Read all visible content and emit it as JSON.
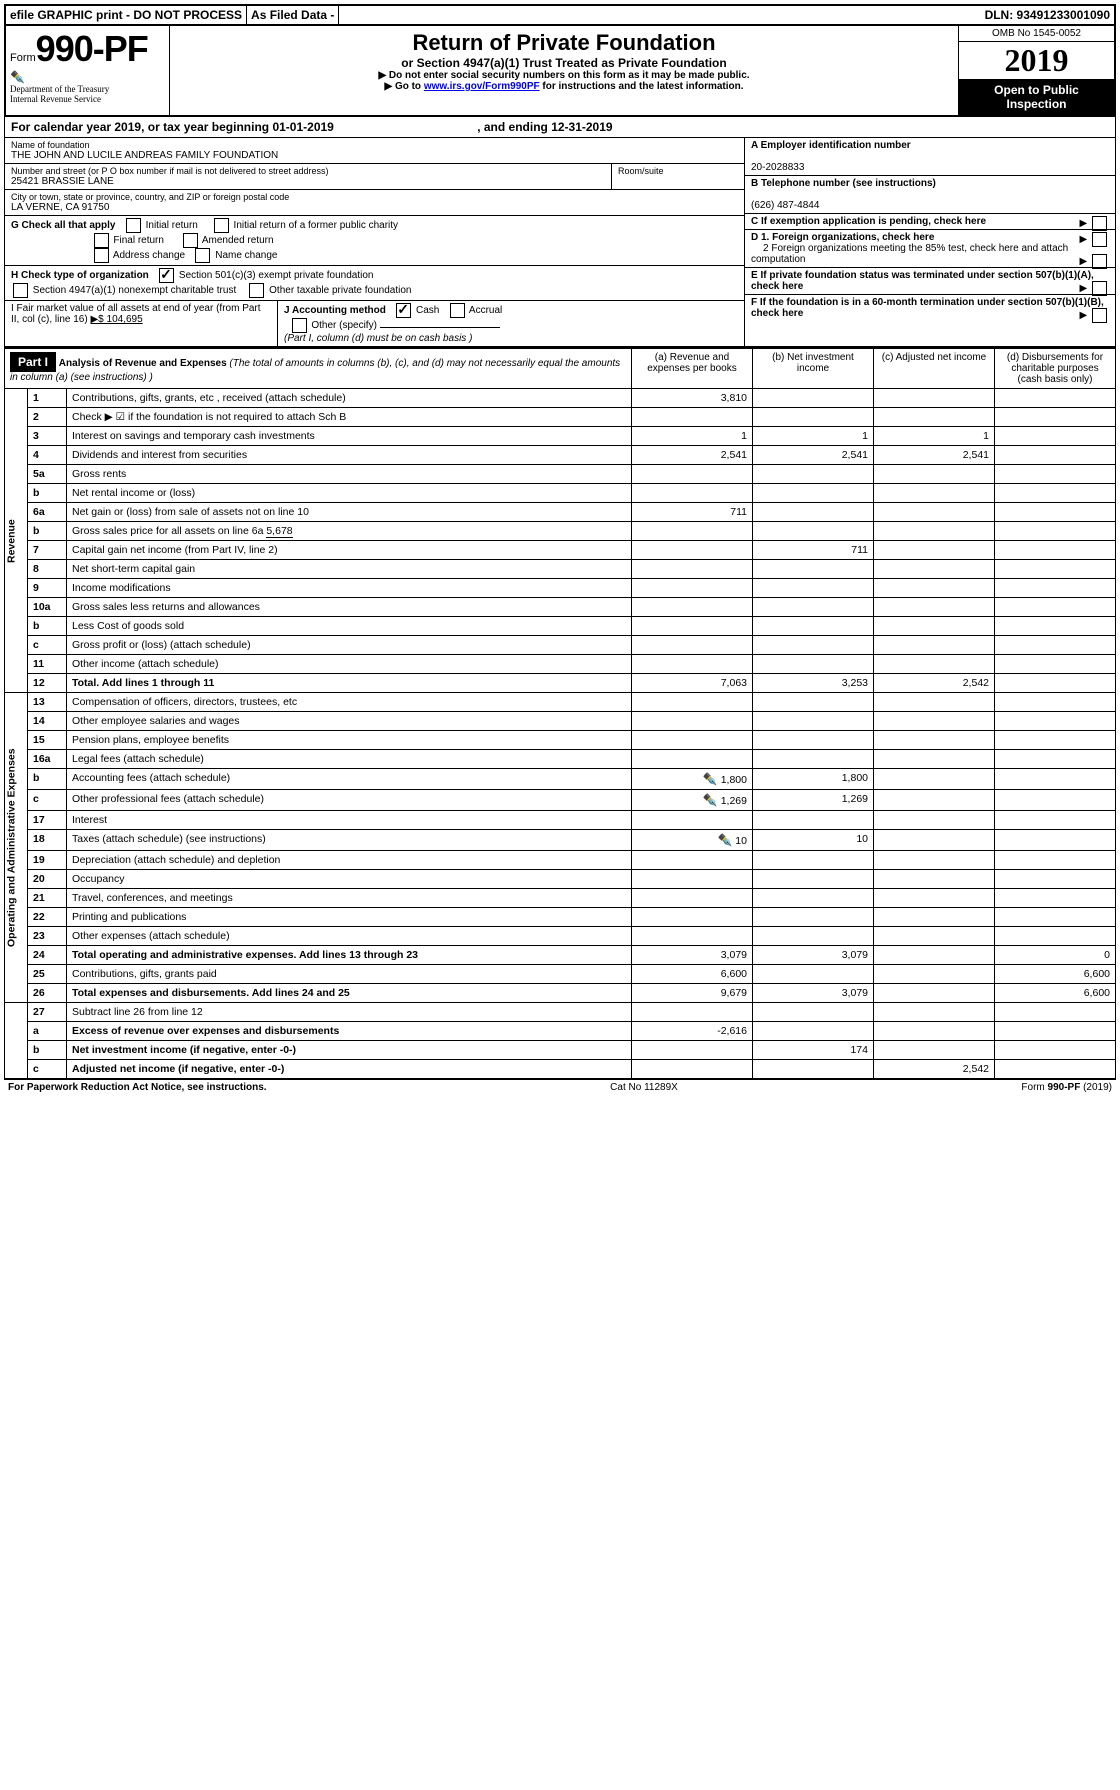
{
  "topbar": {
    "efile": "efile GRAPHIC print - DO NOT PROCESS",
    "asfiled": "As Filed Data -",
    "dln": "DLN: 93491233001090"
  },
  "header": {
    "form_prefix": "Form",
    "form_number": "990-PF",
    "dept1": "Department of the Treasury",
    "dept2": "Internal Revenue Service",
    "title": "Return of Private Foundation",
    "subtitle": "or Section 4947(a)(1) Trust Treated as Private Foundation",
    "note1": "▶ Do not enter social security numbers on this form as it may be made public.",
    "note2_pre": "▶ Go to ",
    "note2_link": "www.irs.gov/Form990PF",
    "note2_post": " for instructions and the latest information.",
    "omb": "OMB No 1545-0052",
    "year": "2019",
    "open_public": "Open to Public Inspection"
  },
  "calendar": {
    "text_pre": "For calendar year 2019, or tax year beginning ",
    "begin": "01-01-2019",
    "mid": ", and ending ",
    "end": "12-31-2019"
  },
  "entity": {
    "name_label": "Name of foundation",
    "name": "THE JOHN AND LUCILE ANDREAS FAMILY FOUNDATION",
    "addr_label": "Number and street (or P O  box number if mail is not delivered to street address)",
    "addr": "25421 BRASSIE LANE",
    "room_label": "Room/suite",
    "city_label": "City or town, state or province, country, and ZIP or foreign postal code",
    "city": "LA VERNE, CA  91750",
    "ein_label": "A Employer identification number",
    "ein": "20-2028833",
    "tel_label": "B Telephone number (see instructions)",
    "tel": "(626) 487-4844",
    "c_label": "C If exemption application is pending, check here",
    "d1": "D 1. Foreign organizations, check here",
    "d2": "2 Foreign organizations meeting the 85% test, check here and attach computation",
    "e": "E  If private foundation status was terminated under section 507(b)(1)(A), check here",
    "f": "F  If the foundation is in a 60-month termination under section 507(b)(1)(B), check here"
  },
  "checks": {
    "g_label": "G Check all that apply",
    "initial": "Initial return",
    "initial_former": "Initial return of a former public charity",
    "final": "Final return",
    "amended": "Amended return",
    "addr_change": "Address change",
    "name_change": "Name change",
    "h_label": "H Check type of organization",
    "h_501c3": "Section 501(c)(3) exempt private foundation",
    "h_4947": "Section 4947(a)(1) nonexempt charitable trust",
    "h_other": "Other taxable private foundation",
    "i_label": "I Fair market value of all assets at end of year (from Part II, col  (c), line 16)",
    "i_val": "▶$  104,695",
    "j_label": "J Accounting method",
    "j_cash": "Cash",
    "j_accrual": "Accrual",
    "j_other": "Other (specify)",
    "j_note": "(Part I, column (d) must be on cash basis )"
  },
  "part1": {
    "label": "Part I",
    "title": "Analysis of Revenue and Expenses",
    "title_note": "(The total of amounts in columns (b), (c), and (d) may not necessarily equal the amounts in column (a) (see instructions) )",
    "col_a": "(a) Revenue and expenses per books",
    "col_b": "(b) Net investment income",
    "col_c": "(c) Adjusted net income",
    "col_d": "(d) Disbursements for charitable purposes (cash basis only)",
    "revenue_label": "Revenue",
    "expenses_label": "Operating and Administrative Expenses"
  },
  "lines": {
    "1": {
      "n": "1",
      "d": "Contributions, gifts, grants, etc , received (attach schedule)",
      "a": "3,810"
    },
    "2": {
      "n": "2",
      "d": "Check ▶ ☑ if the foundation is not required to attach Sch  B"
    },
    "3": {
      "n": "3",
      "d": "Interest on savings and temporary cash investments",
      "a": "1",
      "b": "1",
      "c": "1"
    },
    "4": {
      "n": "4",
      "d": "Dividends and interest from securities",
      "a": "2,541",
      "b": "2,541",
      "c": "2,541"
    },
    "5a": {
      "n": "5a",
      "d": "Gross rents"
    },
    "5b": {
      "n": "b",
      "d": "Net rental income or (loss)"
    },
    "6a": {
      "n": "6a",
      "d": "Net gain or (loss) from sale of assets not on line 10",
      "a": "711"
    },
    "6b": {
      "n": "b",
      "d": "Gross sales price for all assets on line 6a",
      "inline": "5,678"
    },
    "7": {
      "n": "7",
      "d": "Capital gain net income (from Part IV, line 2)",
      "b": "711"
    },
    "8": {
      "n": "8",
      "d": "Net short-term capital gain"
    },
    "9": {
      "n": "9",
      "d": "Income modifications"
    },
    "10a": {
      "n": "10a",
      "d": "Gross sales less returns and allowances"
    },
    "10b": {
      "n": "b",
      "d": "Less  Cost of goods sold"
    },
    "10c": {
      "n": "c",
      "d": "Gross profit or (loss) (attach schedule)"
    },
    "11": {
      "n": "11",
      "d": "Other income (attach schedule)"
    },
    "12": {
      "n": "12",
      "d": "Total. Add lines 1 through 11",
      "a": "7,063",
      "b": "3,253",
      "c": "2,542",
      "bold": true
    },
    "13": {
      "n": "13",
      "d": "Compensation of officers, directors, trustees, etc"
    },
    "14": {
      "n": "14",
      "d": "Other employee salaries and wages"
    },
    "15": {
      "n": "15",
      "d": "Pension plans, employee benefits"
    },
    "16a": {
      "n": "16a",
      "d": "Legal fees (attach schedule)"
    },
    "16b": {
      "n": "b",
      "d": "Accounting fees (attach schedule)",
      "a": "1,800",
      "b": "1,800",
      "icon": true
    },
    "16c": {
      "n": "c",
      "d": "Other professional fees (attach schedule)",
      "a": "1,269",
      "b": "1,269",
      "icon": true
    },
    "17": {
      "n": "17",
      "d": "Interest"
    },
    "18": {
      "n": "18",
      "d": "Taxes (attach schedule) (see instructions)",
      "a": "10",
      "b": "10",
      "icon": true
    },
    "19": {
      "n": "19",
      "d": "Depreciation (attach schedule) and depletion"
    },
    "20": {
      "n": "20",
      "d": "Occupancy"
    },
    "21": {
      "n": "21",
      "d": "Travel, conferences, and meetings"
    },
    "22": {
      "n": "22",
      "d": "Printing and publications"
    },
    "23": {
      "n": "23",
      "d": "Other expenses (attach schedule)"
    },
    "24": {
      "n": "24",
      "d": "Total operating and administrative expenses. Add lines 13 through 23",
      "a": "3,079",
      "b": "3,079",
      "dd": "0",
      "bold": true
    },
    "25": {
      "n": "25",
      "d": "Contributions, gifts, grants paid",
      "a": "6,600",
      "dd": "6,600"
    },
    "26": {
      "n": "26",
      "d": "Total expenses and disbursements. Add lines 24 and 25",
      "a": "9,679",
      "b": "3,079",
      "dd": "6,600",
      "bold": true
    },
    "27": {
      "n": "27",
      "d": "Subtract line 26 from line 12"
    },
    "27a": {
      "n": "a",
      "d": "Excess of revenue over expenses and disbursements",
      "a": "-2,616",
      "bold": true
    },
    "27b": {
      "n": "b",
      "d": "Net investment income (if negative, enter -0-)",
      "b": "174",
      "bold": true
    },
    "27c": {
      "n": "c",
      "d": "Adjusted net income (if negative, enter -0-)",
      "c": "2,542",
      "bold": true
    }
  },
  "footer": {
    "left": "For Paperwork Reduction Act Notice, see instructions.",
    "mid": "Cat  No  11289X",
    "right": "Form 990-PF (2019)"
  }
}
